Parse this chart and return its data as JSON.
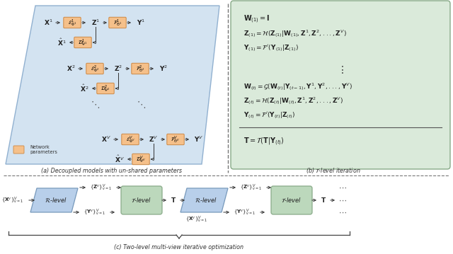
{
  "fig_width": 6.4,
  "fig_height": 3.59,
  "dpi": 100,
  "bg_color": "#ffffff",
  "panel_a_bg": "#cfe0f0",
  "panel_b_bg": "#daeada",
  "panel_c_rlevel_bg": "#b8cfea",
  "panel_c_tlevel_bg": "#bcd8bc",
  "box_orange": "#f5c08a",
  "box_orange_edge": "#cc8844",
  "arrow_color": "#333333",
  "title_a": "(a) Decoupled models with un-shared parameters",
  "title_b": "(b) $\\mathcal{T}$-level iteration",
  "title_c": "(c) Two-level multi-view iterative optimization"
}
